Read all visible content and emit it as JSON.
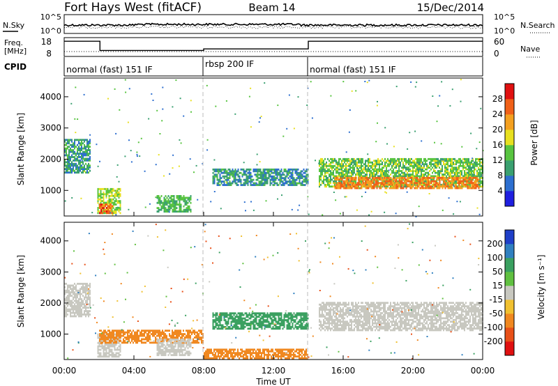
{
  "header": {
    "title": "Fort Hays West (fitACF)",
    "beam": "Beam 14",
    "date": "15/Dec/2014"
  },
  "noise_panel": {
    "left_label": "N.Sky",
    "left_ticks": [
      "10^5",
      "10^0"
    ],
    "right_ticks": [
      "10^5",
      "10^0"
    ],
    "right_label": "N.Search"
  },
  "freq_panel": {
    "left_label_1": "Freq.",
    "left_label_2": "[MHz]",
    "left_ticks": [
      "18",
      "8"
    ],
    "right_ticks": [
      "60",
      "0"
    ],
    "right_label": "Nave",
    "freq_steps": [
      {
        "t0": 0,
        "t1": 2.05,
        "f": 17
      },
      {
        "t0": 2.05,
        "t1": 8.0,
        "f": 11
      },
      {
        "t0": 8.0,
        "t1": 14.0,
        "f": 12
      },
      {
        "t0": 14.0,
        "t1": 24.0,
        "f": 17
      }
    ]
  },
  "cpid": {
    "label": "CPID",
    "segments": [
      {
        "label": "normal (fast) 151 IF",
        "t0": 0,
        "t1": 8
      },
      {
        "label": "rbsp 200 IF",
        "t0": 8,
        "t1": 14
      },
      {
        "label": "normal (fast) 151 IF",
        "t0": 14,
        "t1": 24
      }
    ]
  },
  "chart_data": [
    {
      "type": "heatmap",
      "name": "power",
      "ylabel": "Slant Range [km]",
      "xlim": [
        0,
        24
      ],
      "ylim": [
        180,
        4600
      ],
      "yticks": [
        "1000",
        "2000",
        "3000",
        "4000"
      ],
      "colorbar_label": "Power [dB]",
      "colorbar_ticks": [
        "4",
        "8",
        "12",
        "16",
        "20",
        "24",
        "28"
      ],
      "colorbar_colors": [
        "#1f1fe0",
        "#2d6fd0",
        "#3aa070",
        "#58c440",
        "#e8e020",
        "#f4a020",
        "#f06018",
        "#e01010"
      ],
      "features": [
        {
          "t0": 0.0,
          "t1": 1.5,
          "r0": 1550,
          "r1": 2650,
          "value": 10
        },
        {
          "t0": 1.9,
          "t1": 3.2,
          "r0": 250,
          "r1": 1050,
          "value": 16
        },
        {
          "t0": 2.0,
          "t1": 2.8,
          "r0": 250,
          "r1": 550,
          "value": 26
        },
        {
          "t0": 5.3,
          "t1": 7.3,
          "r0": 300,
          "r1": 800,
          "value": 12
        },
        {
          "t0": 8.5,
          "t1": 14.0,
          "r0": 1150,
          "r1": 1700,
          "value": 9
        },
        {
          "t0": 14.6,
          "t1": 24.0,
          "r0": 1100,
          "r1": 2000,
          "value": 14
        },
        {
          "t0": 15.5,
          "t1": 23.8,
          "r0": 1050,
          "r1": 1400,
          "value": 24
        }
      ]
    },
    {
      "type": "heatmap",
      "name": "velocity",
      "ylabel": "Slant Range [km]",
      "xlim": [
        0,
        24
      ],
      "ylim": [
        180,
        4600
      ],
      "yticks": [
        "1000",
        "2000",
        "3000",
        "4000"
      ],
      "xticks": [
        "00:00",
        "04:00",
        "08:00",
        "12:00",
        "16:00",
        "20:00",
        "00:00"
      ],
      "xlabel": "Time UT",
      "colorbar_label": "Velocity [m s⁻¹]",
      "colorbar_ticks": [
        "200",
        "100",
        "50",
        "15",
        "-15",
        "-50",
        "-100",
        "-200"
      ],
      "colorbar_colors": [
        "#1f3fc8",
        "#3080c0",
        "#3aa060",
        "#60c040",
        "#c8c8c0",
        "#f0c030",
        "#f08820",
        "#e85018",
        "#e01010"
      ],
      "features": [
        {
          "t0": 0.0,
          "t1": 1.5,
          "r0": 1550,
          "r1": 2600,
          "value": 0
        },
        {
          "t0": 1.9,
          "t1": 3.2,
          "r0": 250,
          "r1": 1000,
          "value": -5
        },
        {
          "t0": 2.0,
          "t1": 8.0,
          "r0": 700,
          "r1": 1100,
          "value": -60
        },
        {
          "t0": 5.3,
          "t1": 7.3,
          "r0": 300,
          "r1": 800,
          "value": -10
        },
        {
          "t0": 8.0,
          "t1": 14.0,
          "r0": 200,
          "r1": 500,
          "value": -60
        },
        {
          "t0": 8.5,
          "t1": 14.0,
          "r0": 1150,
          "r1": 1700,
          "value": 60
        },
        {
          "t0": 14.6,
          "t1": 24.0,
          "r0": 1100,
          "r1": 2000,
          "value": 0
        }
      ]
    }
  ]
}
